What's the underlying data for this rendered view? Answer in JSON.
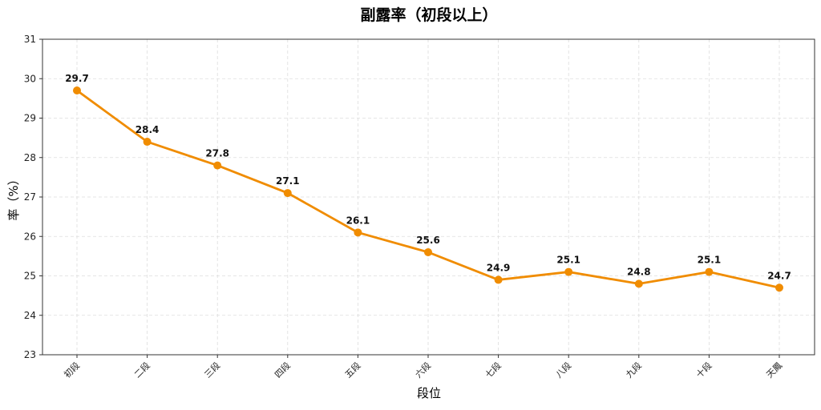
{
  "chart_data": {
    "type": "line",
    "title": "副露率（初段以上）",
    "xlabel": "段位",
    "ylabel": "率（%）",
    "categories": [
      "初段",
      "二段",
      "三段",
      "四段",
      "五段",
      "六段",
      "七段",
      "八段",
      "九段",
      "十段",
      "天鳳"
    ],
    "values": [
      29.7,
      28.4,
      27.8,
      27.1,
      26.1,
      25.6,
      24.9,
      25.1,
      24.8,
      25.1,
      24.7
    ],
    "data_labels": [
      "29.7",
      "28.4",
      "27.8",
      "27.1",
      "26.1",
      "25.6",
      "24.9",
      "25.1",
      "24.8",
      "25.1",
      "24.7"
    ],
    "ylim": [
      23,
      31
    ],
    "yticks": [
      "23",
      "24",
      "25",
      "26",
      "27",
      "28",
      "29",
      "30",
      "31"
    ],
    "grid": true,
    "color": "#f08c00"
  }
}
